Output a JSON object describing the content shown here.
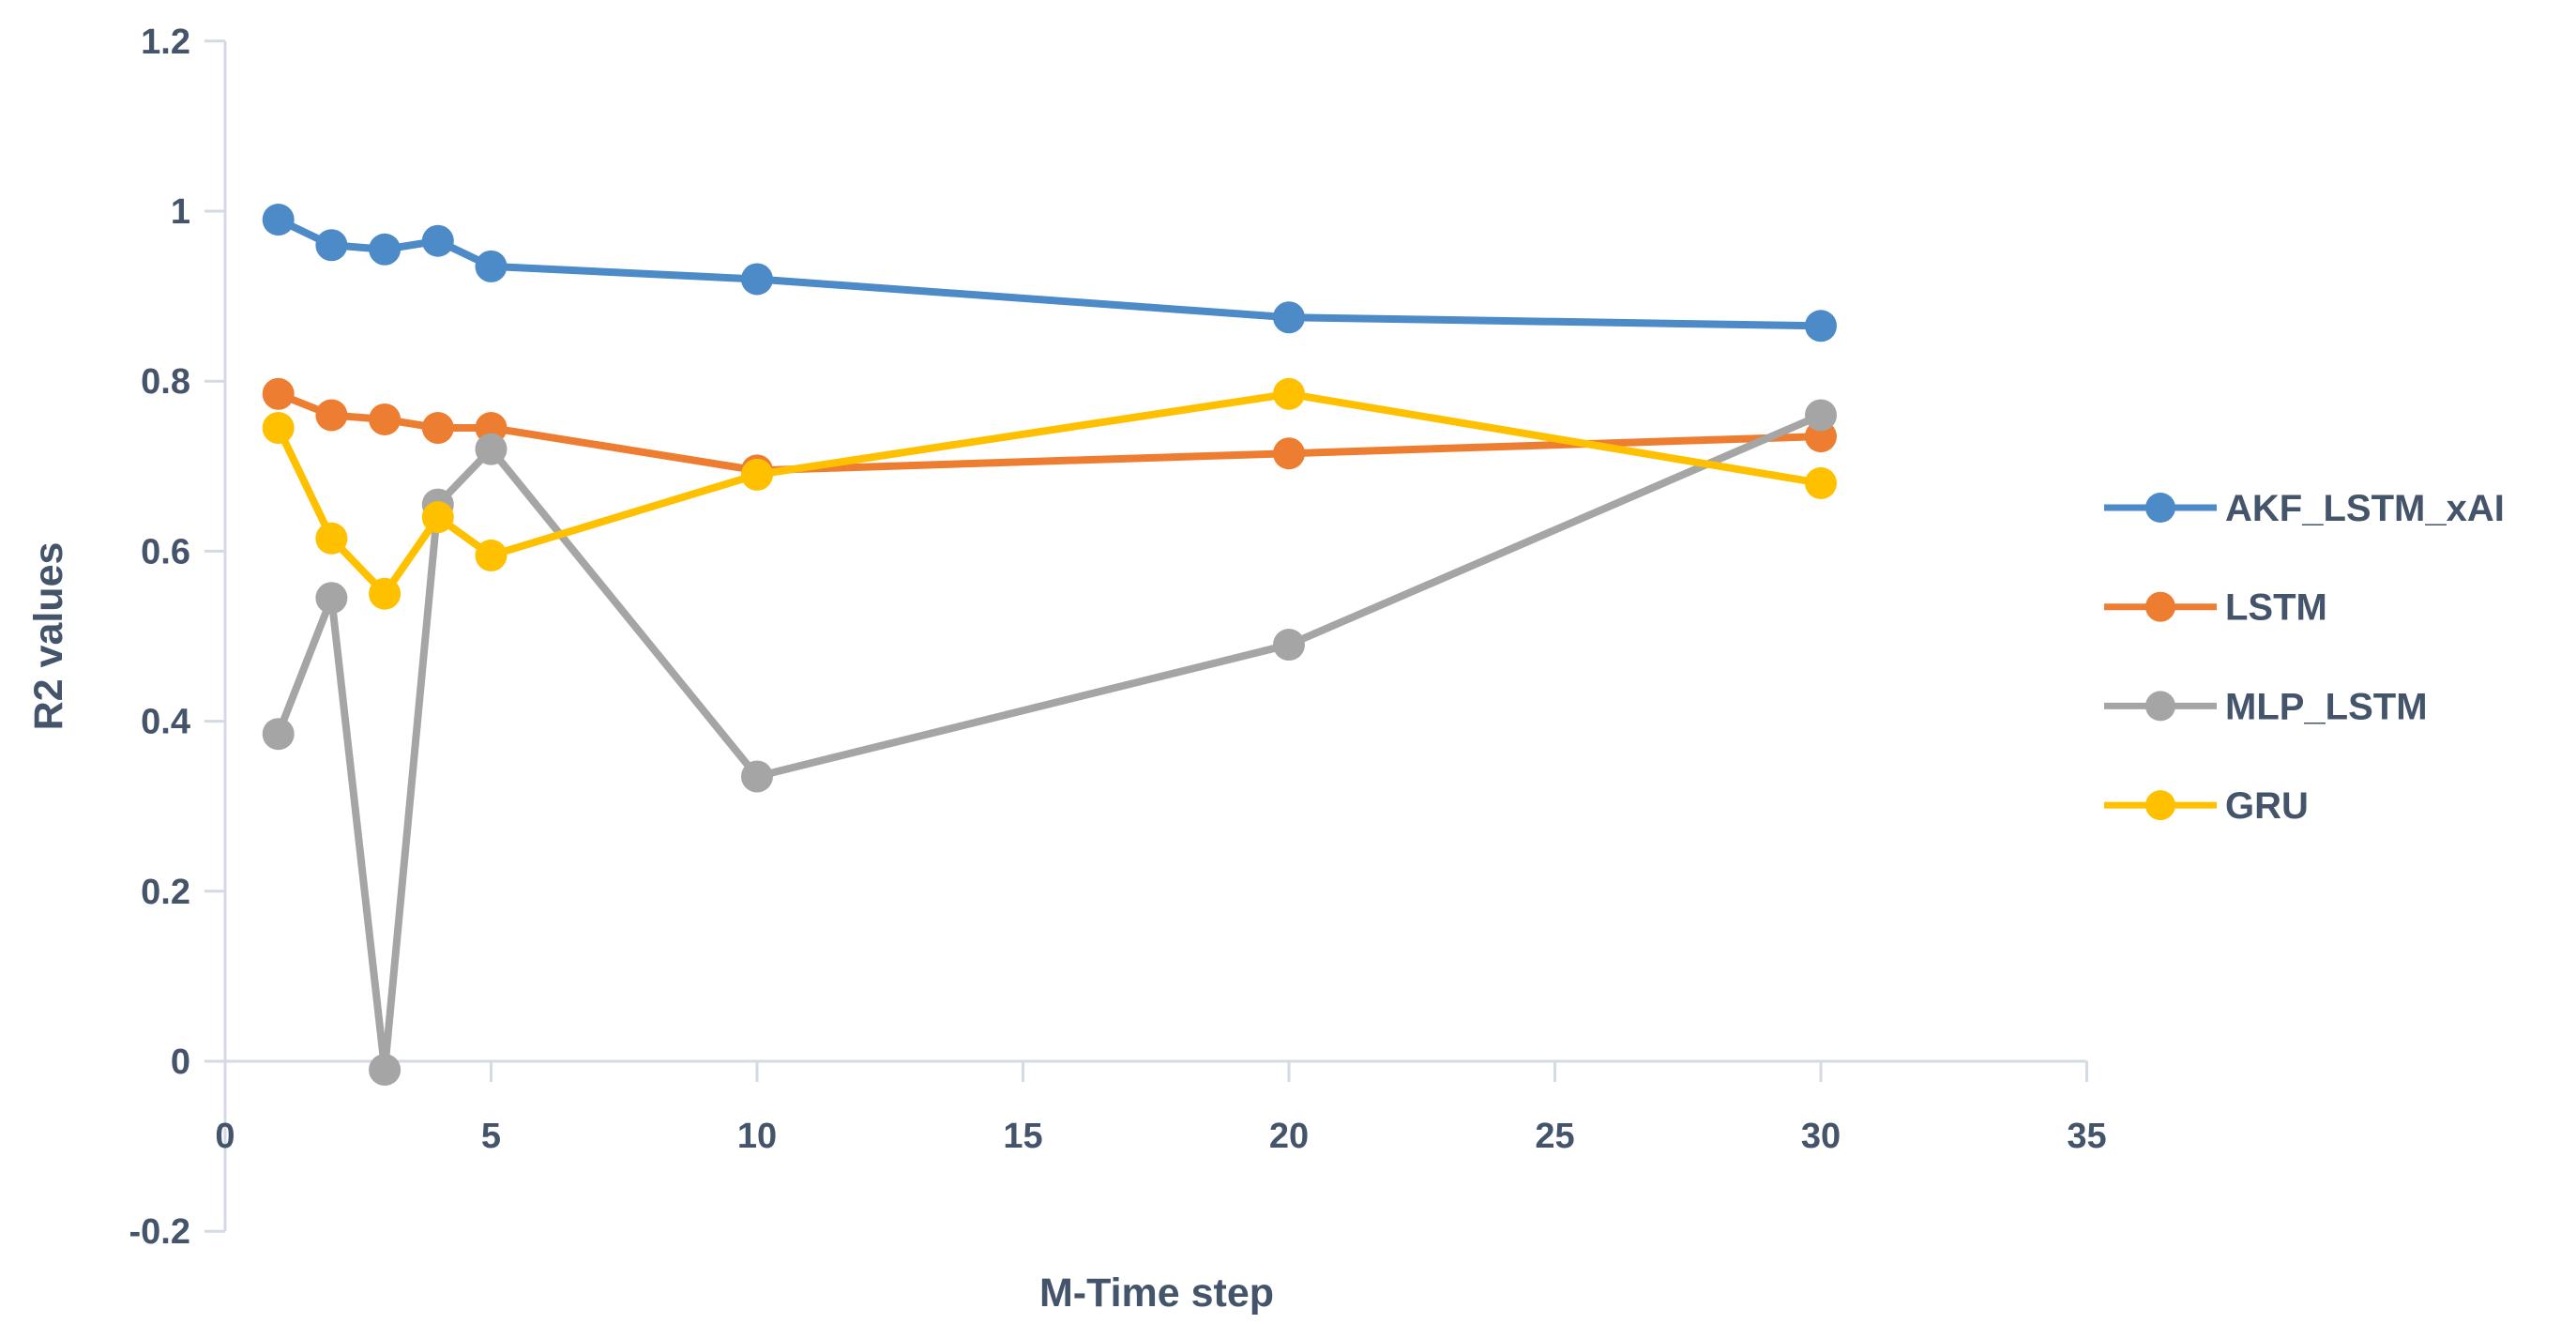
{
  "chart_data": {
    "type": "line",
    "title": "",
    "xlabel": "M-Time step",
    "ylabel": "R2 values",
    "x": [
      1,
      2,
      3,
      4,
      5,
      10,
      20,
      30
    ],
    "series": [
      {
        "name": "AKF_LSTM_xAI",
        "color": "#4D8AC8",
        "values": [
          0.99,
          0.96,
          0.955,
          0.965,
          0.935,
          0.92,
          0.875,
          0.865
        ]
      },
      {
        "name": "LSTM",
        "color": "#ED7D31",
        "values": [
          0.785,
          0.76,
          0.755,
          0.745,
          0.745,
          0.695,
          0.715,
          0.735
        ]
      },
      {
        "name": "MLP_LSTM",
        "color": "#A5A5A5",
        "values": [
          0.385,
          0.545,
          -0.01,
          0.655,
          0.72,
          0.335,
          0.49,
          0.76
        ]
      },
      {
        "name": "GRU",
        "color": "#FFC000",
        "values": [
          0.745,
          0.615,
          0.55,
          0.64,
          0.595,
          0.69,
          0.785,
          0.68
        ]
      }
    ],
    "xticks": [
      0,
      5,
      10,
      15,
      20,
      25,
      30,
      35
    ],
    "yticks": [
      -0.2,
      0,
      0.2,
      0.4,
      0.6,
      0.8,
      1,
      1.2
    ],
    "xlim": [
      0,
      35
    ],
    "ylim": [
      -0.2,
      1.2
    ],
    "grid": false,
    "legend_position": "right",
    "marker": "circle"
  },
  "styles": {
    "text_color": "#44546A",
    "axis_color": "#D4DAE5",
    "background": "#FFFFFF"
  }
}
